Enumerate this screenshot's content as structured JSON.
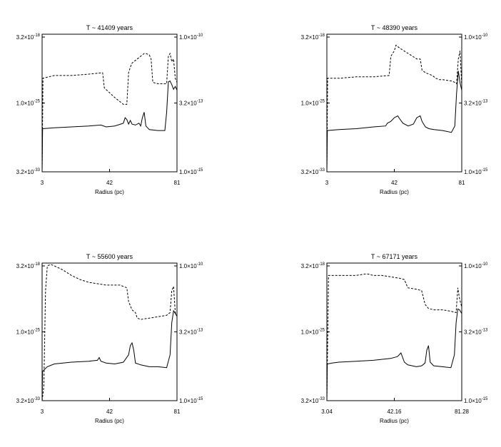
{
  "chart_data": [
    {
      "type": "line",
      "title": "T ~ 41409 years",
      "xlabel": "Radius (pc)",
      "xticks": [
        "3",
        "42",
        "81"
      ],
      "xlim": [
        3,
        81
      ],
      "yleft_ticks": [
        {
          "base": "3.2×10",
          "exp": "-18"
        },
        {
          "base": "1.0×10",
          "exp": "-25"
        },
        {
          "base": "3.2×10",
          "exp": "-33"
        }
      ],
      "yright_ticks": [
        {
          "base": "1.0×10",
          "exp": "-10"
        },
        {
          "base": "3.2×10",
          "exp": "-13"
        },
        {
          "base": "1.0×10",
          "exp": "-15"
        }
      ],
      "yleft_log_range": [
        -32.5,
        -17.5
      ],
      "yright_log_range": [
        -15,
        -10
      ],
      "series": [
        {
          "style": "solid",
          "x": [
            3,
            3.3,
            10,
            20,
            30,
            37,
            40,
            45,
            50,
            51,
            52,
            53,
            54,
            55,
            57,
            59,
            60,
            61,
            62,
            63,
            65,
            70,
            74,
            75,
            76,
            77,
            78,
            79,
            80,
            81
          ],
          "y": [
            -32.5,
            -27.8,
            -27.7,
            -27.6,
            -27.5,
            -27.4,
            -27.6,
            -27.5,
            -27.2,
            -26.6,
            -26.8,
            -27.3,
            -26.9,
            -27.3,
            -27.4,
            -27.2,
            -27.5,
            -26.6,
            -26.0,
            -27.5,
            -27.9,
            -28.0,
            -28.0,
            -26.0,
            -22.7,
            -22.6,
            -23.0,
            -23.5,
            -23.2,
            -23.6
          ]
        },
        {
          "style": "dashed",
          "x": [
            3,
            3.5,
            10,
            20,
            30,
            38,
            39,
            45,
            50,
            52,
            53,
            54,
            55,
            56,
            57,
            60,
            62,
            63,
            65,
            66,
            67,
            70,
            73,
            74,
            75,
            76,
            77,
            78,
            79,
            80,
            81
          ],
          "y": [
            -15,
            -11.6,
            -11.5,
            -11.5,
            -11.45,
            -11.4,
            -11.95,
            -12.3,
            -12.55,
            -12.55,
            -11.4,
            -11.2,
            -11.05,
            -11.0,
            -10.95,
            -10.8,
            -10.7,
            -10.7,
            -10.75,
            -10.9,
            -11.75,
            -11.8,
            -11.8,
            -11.8,
            -11.8,
            -10.8,
            -10.7,
            -11.0,
            -10.9,
            -11.6,
            -11.75
          ]
        }
      ]
    },
    {
      "type": "line",
      "title": "T ~ 48390 years",
      "xlabel": "Radius (pc)",
      "xticks": [
        "3",
        "42",
        "81"
      ],
      "xlim": [
        3,
        81
      ],
      "yleft_ticks": [
        {
          "base": "3.2×10",
          "exp": "-18"
        },
        {
          "base": "1.0×10",
          "exp": "-25"
        },
        {
          "base": "3.2×10",
          "exp": "-33"
        }
      ],
      "yright_ticks": [
        {
          "base": "1.0×10",
          "exp": "-10"
        },
        {
          "base": "3.2×10",
          "exp": "-13"
        },
        {
          "base": "1.0×10",
          "exp": "-15"
        }
      ],
      "yleft_log_range": [
        -32.5,
        -17.5
      ],
      "yright_log_range": [
        -15,
        -10
      ],
      "series": [
        {
          "style": "solid",
          "x": [
            3,
            3.3,
            10,
            20,
            30,
            37,
            38,
            40,
            42,
            44,
            45,
            47,
            50,
            53,
            55,
            57,
            58,
            60,
            62,
            65,
            70,
            75,
            77,
            78,
            79,
            80,
            81
          ],
          "y": [
            -32.5,
            -28.0,
            -27.9,
            -27.8,
            -27.6,
            -27.5,
            -27.2,
            -27.0,
            -26.6,
            -26.4,
            -26.7,
            -27.2,
            -27.5,
            -27.3,
            -26.6,
            -26.4,
            -27.0,
            -27.6,
            -27.8,
            -27.9,
            -28.0,
            -28.2,
            -27.5,
            -24.0,
            -21.5,
            -22.8,
            -23.6
          ]
        },
        {
          "style": "dashed",
          "x": [
            3,
            3.4,
            10,
            20,
            30,
            39,
            40,
            42,
            43,
            45,
            50,
            55,
            57,
            58,
            60,
            62,
            64,
            66,
            68,
            70,
            75,
            77,
            78,
            79,
            80,
            81
          ],
          "y": [
            -15,
            -11.6,
            -11.6,
            -11.55,
            -11.55,
            -11.5,
            -10.8,
            -10.6,
            -10.4,
            -10.5,
            -10.7,
            -10.9,
            -10.9,
            -11.3,
            -11.4,
            -11.45,
            -11.5,
            -11.6,
            -11.65,
            -11.65,
            -11.7,
            -11.75,
            -11.8,
            -10.9,
            -10.6,
            -11.9
          ]
        }
      ]
    },
    {
      "type": "line",
      "title": "T ~ 55600 years",
      "xlabel": "Radius (pc)",
      "xticks": [
        "3",
        "42",
        "81"
      ],
      "xlim": [
        3,
        81
      ],
      "yleft_ticks": [
        {
          "base": "3.2×10",
          "exp": "-18"
        },
        {
          "base": "1.0×10",
          "exp": "-25"
        },
        {
          "base": "3.2×10",
          "exp": "-33"
        }
      ],
      "yright_ticks": [
        {
          "base": "1.0×10",
          "exp": "-10"
        },
        {
          "base": "3.2×10",
          "exp": "-13"
        },
        {
          "base": "1.0×10",
          "exp": "-15"
        }
      ],
      "yleft_log_range": [
        -32.5,
        -17.5
      ],
      "yright_log_range": [
        -15,
        -10
      ],
      "series": [
        {
          "style": "solid",
          "x": [
            3,
            3.3,
            6,
            10,
            20,
            30,
            35,
            36,
            37,
            40,
            45,
            50,
            53,
            54,
            55,
            56,
            57,
            60,
            65,
            70,
            75,
            77,
            78,
            79,
            80,
            81
          ],
          "y": [
            -32.5,
            -29.3,
            -28.8,
            -28.5,
            -28.3,
            -28.2,
            -28.1,
            -27.8,
            -28.2,
            -28.4,
            -28.5,
            -28.3,
            -27.5,
            -26.5,
            -26.2,
            -27.0,
            -28.4,
            -28.6,
            -28.8,
            -28.8,
            -28.9,
            -27.5,
            -24.0,
            -22.7,
            -23.0,
            -23.3
          ]
        },
        {
          "style": "dashed",
          "x": [
            3,
            4,
            5,
            6,
            8,
            10,
            15,
            20,
            25,
            30,
            40,
            48,
            50,
            52,
            53,
            55,
            57,
            58,
            60,
            65,
            70,
            75,
            77,
            78,
            79,
            80,
            81
          ],
          "y": [
            -15,
            -14.5,
            -11.0,
            -10.1,
            -10.05,
            -10.1,
            -10.25,
            -10.45,
            -10.6,
            -10.7,
            -10.8,
            -10.8,
            -10.85,
            -10.9,
            -11.4,
            -11.7,
            -11.8,
            -12.0,
            -12.05,
            -12.0,
            -11.95,
            -11.9,
            -11.8,
            -11.0,
            -10.85,
            -11.8,
            -11.9
          ]
        }
      ]
    },
    {
      "type": "line",
      "title": "T ~ 67171 years",
      "xlabel": "Radius (pc)",
      "xticks": [
        "3.04",
        "42.16",
        "81.28"
      ],
      "xlim": [
        3.04,
        81.28
      ],
      "yleft_ticks": [
        {
          "base": "3.2×10",
          "exp": "-18"
        },
        {
          "base": "1.0×10",
          "exp": "-25"
        },
        {
          "base": "3.2×10",
          "exp": "-33"
        }
      ],
      "yright_ticks": [
        {
          "base": "1.0×10",
          "exp": "-10"
        },
        {
          "base": "3.2×10",
          "exp": "-13"
        },
        {
          "base": "1.0×10",
          "exp": "-15"
        }
      ],
      "yleft_log_range": [
        -32.5,
        -17.5
      ],
      "yright_log_range": [
        -15,
        -10
      ],
      "series": [
        {
          "style": "solid",
          "x": [
            3.04,
            3.3,
            6,
            10,
            20,
            30,
            40,
            44,
            46,
            47,
            48,
            50,
            55,
            58,
            60,
            61,
            62,
            63,
            65,
            70,
            75,
            77,
            78,
            79,
            80,
            81.28
          ],
          "y": [
            -32.5,
            -28.5,
            -28.4,
            -28.3,
            -28.2,
            -28.1,
            -27.9,
            -27.7,
            -27.3,
            -27.8,
            -28.3,
            -28.6,
            -28.8,
            -28.7,
            -28.4,
            -27.0,
            -26.5,
            -28.3,
            -28.7,
            -28.8,
            -28.9,
            -27.5,
            -24.0,
            -22.5,
            -22.6,
            -23.0
          ]
        },
        {
          "style": "dashed",
          "x": [
            3.04,
            4,
            6,
            10,
            20,
            25,
            27,
            30,
            35,
            40,
            45,
            48,
            50,
            55,
            58,
            60,
            62,
            65,
            70,
            75,
            78,
            79,
            80,
            81.28
          ],
          "y": [
            -15,
            -10.45,
            -10.45,
            -10.45,
            -10.45,
            -10.4,
            -10.4,
            -10.45,
            -10.45,
            -10.5,
            -10.55,
            -10.6,
            -10.9,
            -10.95,
            -11.0,
            -11.5,
            -11.65,
            -11.7,
            -11.7,
            -11.75,
            -11.8,
            -10.9,
            -11.3,
            -11.6
          ]
        }
      ]
    }
  ]
}
